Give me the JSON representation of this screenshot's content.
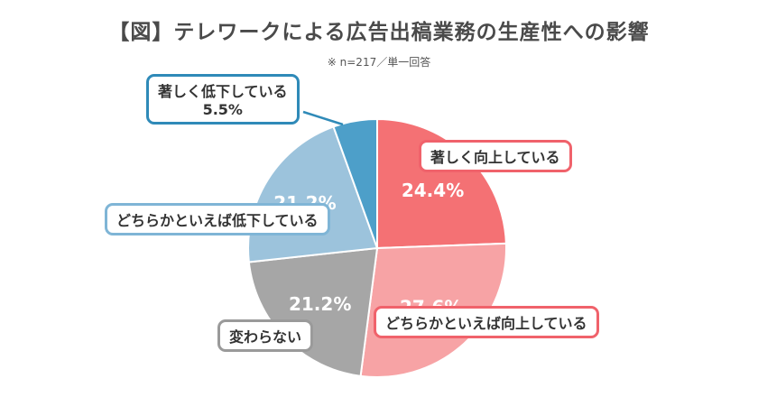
{
  "chart_data": {
    "type": "pie",
    "title": "【図】テレワークによる広告出稿業務の生産性への影響",
    "subtitle": "※ n=217／単一回答",
    "slices": [
      {
        "label": "著しく向上している",
        "value": 24.4,
        "value_label": "24.4%",
        "color": "#f47174",
        "border": "#f0626b"
      },
      {
        "label": "どちらかといえば向上している",
        "value": 27.6,
        "value_label": "27.6%",
        "color": "#f7a3a5",
        "border": "#f0626b"
      },
      {
        "label": "変わらない",
        "value": 21.2,
        "value_label": "21.2%",
        "color": "#a6a6a6",
        "border": "#9a9a9a"
      },
      {
        "label": "どちらかといえば低下している",
        "value": 21.2,
        "value_label": "21.2%",
        "color": "#9cc3dc",
        "border": "#7fb5d6"
      },
      {
        "label": "著しく低下している",
        "value": 5.5,
        "value_label": "5.5%",
        "color": "#4d9fc9",
        "border": "#2f8ab8"
      }
    ]
  }
}
